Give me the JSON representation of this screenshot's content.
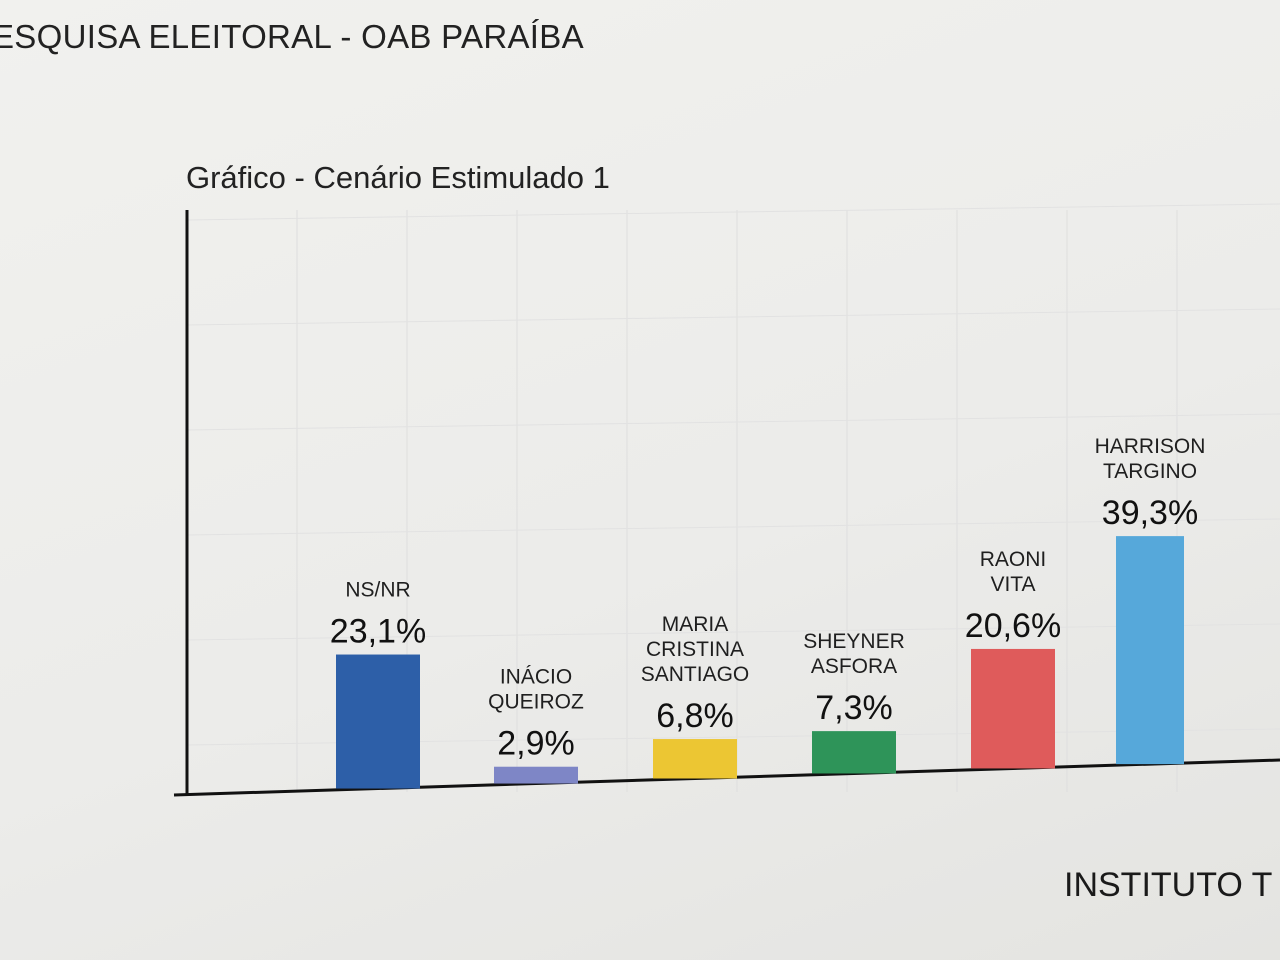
{
  "header": {
    "title": "ESQUISA ELEITORAL - OAB PARAÍBA"
  },
  "footer": {
    "text": "INSTITUTO T"
  },
  "chart_data": {
    "type": "bar",
    "title": "Gráfico - Cenário Estimulado 1",
    "xlabel": "",
    "ylabel": "",
    "ylim": [
      0,
      100
    ],
    "grid": true,
    "categories": [
      [
        "NS/NR"
      ],
      [
        "INÁCIO",
        "QUEIROZ"
      ],
      [
        "MARIA",
        "CRISTINA",
        "SANTIAGO"
      ],
      [
        "SHEYNER",
        "ASFORA"
      ],
      [
        "RAONI",
        "VITA"
      ],
      [
        "HARRISON",
        "TARGINO"
      ]
    ],
    "values": [
      23.1,
      2.9,
      6.8,
      7.3,
      20.6,
      39.3
    ],
    "value_labels": [
      "23,1%",
      "2,9%",
      "6,8%",
      "7,3%",
      "20,6%",
      "39,3%"
    ],
    "colors": [
      "#2d5fa8",
      "#7e86c6",
      "#ecc633",
      "#2e9459",
      "#df5b5b",
      "#56a8da"
    ]
  }
}
